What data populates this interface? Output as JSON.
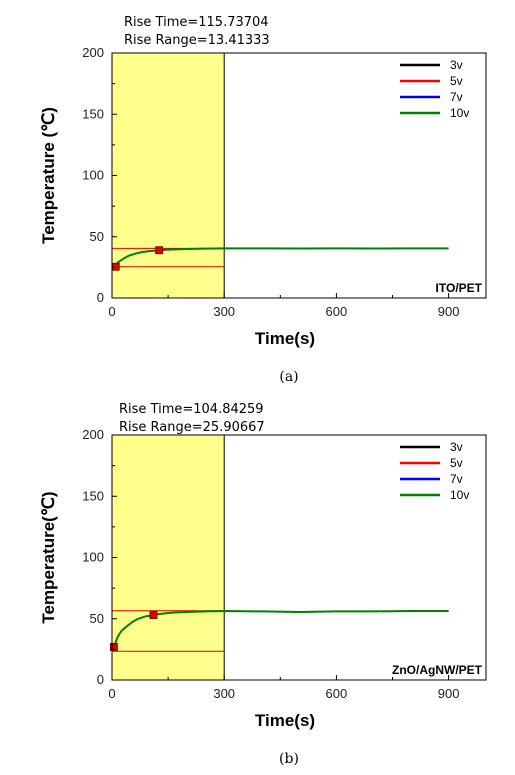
{
  "chart_data": [
    {
      "type": "line",
      "panel_caption": "(a)",
      "sample_label": "ITO/PET",
      "annotations": [
        "Rise Time=115.73704",
        "Rise Range=13.41333"
      ],
      "xlabel": "Time(s)",
      "ylabel": "Temperature (℃)",
      "xlim": [
        0,
        1000
      ],
      "ylim": [
        0,
        200
      ],
      "x_ticks": [
        0,
        300,
        600,
        900
      ],
      "y_ticks": [
        0,
        50,
        100,
        150,
        200
      ],
      "highlight_x_range": [
        0,
        300
      ],
      "highlight_color": "#ffff8c",
      "legend_position": "top-right",
      "series": [
        {
          "name": "3v",
          "color": "#000000",
          "x": [],
          "y": []
        },
        {
          "name": "5v",
          "color": "#ff0000",
          "x": [],
          "y": []
        },
        {
          "name": "7v",
          "color": "#0000ff",
          "x": [],
          "y": []
        },
        {
          "name": "10v",
          "color": "#008000",
          "x": [
            0,
            10,
            20,
            30,
            45,
            60,
            80,
            100,
            125,
            150,
            200,
            250,
            300,
            400,
            500,
            600,
            700,
            800,
            900
          ],
          "y": [
            25.5,
            27.5,
            30,
            32,
            34.5,
            36,
            37.5,
            38.3,
            39,
            39.5,
            40,
            40.3,
            40.5,
            40.5,
            40.4,
            40.5,
            40.4,
            40.5,
            40.5
          ]
        }
      ],
      "rise_reference_lines_y": [
        25.5,
        40.5
      ],
      "rise_markers": [
        {
          "x": 10,
          "y": 25.5
        },
        {
          "x": 126,
          "y": 39
        }
      ]
    },
    {
      "type": "line",
      "panel_caption": "(b)",
      "sample_label": "ZnO/AgNW/PET",
      "annotations": [
        "Rise Time=104.84259",
        "Rise Range=25.90667"
      ],
      "xlabel": "Time(s)",
      "ylabel": "Temperature(℃)",
      "xlim": [
        0,
        1000
      ],
      "ylim": [
        0,
        200
      ],
      "x_ticks": [
        0,
        300,
        600,
        900
      ],
      "y_ticks": [
        0,
        50,
        100,
        150,
        200
      ],
      "highlight_x_range": [
        0,
        300
      ],
      "highlight_color": "#ffff8c",
      "legend_position": "top-right",
      "series": [
        {
          "name": "3v",
          "color": "#000000",
          "x": [],
          "y": []
        },
        {
          "name": "5v",
          "color": "#ff0000",
          "x": [],
          "y": []
        },
        {
          "name": "7v",
          "color": "#0000ff",
          "x": [],
          "y": []
        },
        {
          "name": "10v",
          "color": "#008000",
          "x": [
            5,
            15,
            25,
            40,
            55,
            70,
            90,
            110,
            130,
            160,
            200,
            250,
            300,
            400,
            500,
            600,
            700,
            800,
            900
          ],
          "y": [
            27,
            35,
            40,
            44,
            47.5,
            50,
            52,
            53,
            54,
            55,
            55.5,
            56,
            56.3,
            56,
            55.5,
            56,
            56,
            56.3,
            56.3
          ]
        }
      ],
      "rise_reference_lines_y": [
        23.5,
        56.5
      ],
      "rise_markers": [
        {
          "x": 5,
          "y": 27
        },
        {
          "x": 111,
          "y": 53
        }
      ]
    }
  ]
}
